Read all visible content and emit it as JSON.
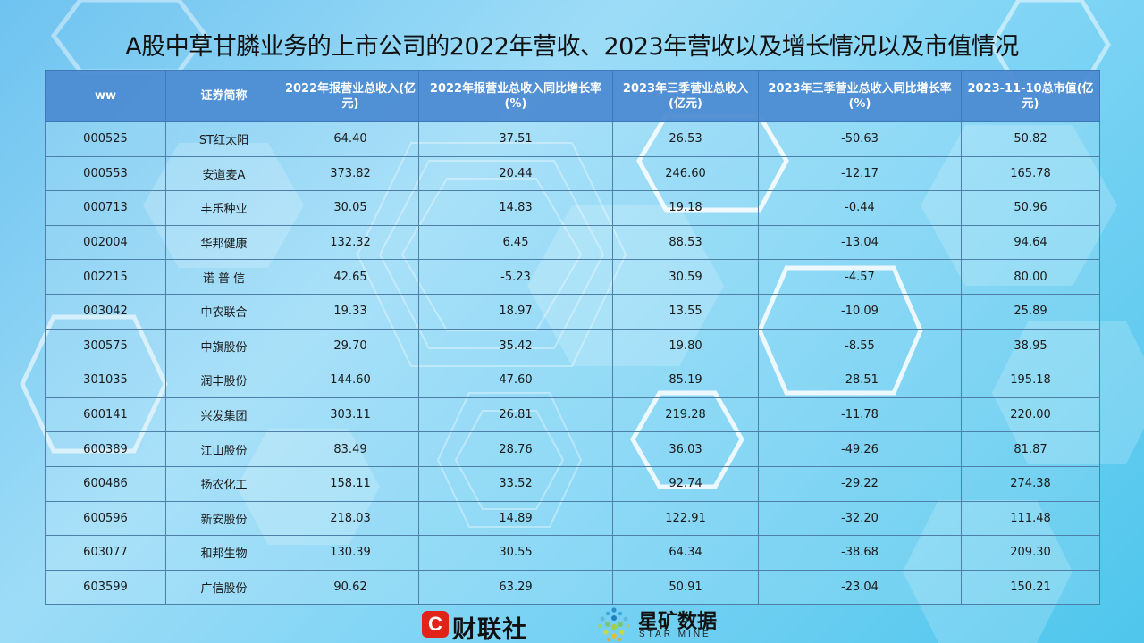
{
  "title": "A股中草甘膦业务的上市公司的2022年营收、2023年营收以及增长情况以及市值情况",
  "table": {
    "headers": [
      "ww",
      "证券简称",
      "2022年报营业总收入(亿元)",
      "2022年报营业总收入同比增长率(%)",
      "2023年三季营业总收入(亿元)",
      "2023年三季营业总收入同比增长率(%)",
      "2023-11-10总市值(亿元)"
    ],
    "rows": [
      [
        "000525",
        "ST红太阳",
        "64.40",
        "37.51",
        "26.53",
        "-50.63",
        "50.82"
      ],
      [
        "000553",
        "安道麦A",
        "373.82",
        "20.44",
        "246.60",
        "-12.17",
        "165.78"
      ],
      [
        "000713",
        "丰乐种业",
        "30.05",
        "14.83",
        "19.18",
        "-0.44",
        "50.96"
      ],
      [
        "002004",
        "华邦健康",
        "132.32",
        "6.45",
        "88.53",
        "-13.04",
        "94.64"
      ],
      [
        "002215",
        "诺 普 信",
        "42.65",
        "-5.23",
        "30.59",
        "-4.57",
        "80.00"
      ],
      [
        "003042",
        "中农联合",
        "19.33",
        "18.97",
        "13.55",
        "-10.09",
        "25.89"
      ],
      [
        "300575",
        "中旗股份",
        "29.70",
        "35.42",
        "19.80",
        "-8.55",
        "38.95"
      ],
      [
        "301035",
        "润丰股份",
        "144.60",
        "47.60",
        "85.19",
        "-28.51",
        "195.18"
      ],
      [
        "600141",
        "兴发集团",
        "303.11",
        "26.81",
        "219.28",
        "-11.78",
        "220.00"
      ],
      [
        "600389",
        "江山股份",
        "83.49",
        "28.76",
        "36.03",
        "-49.26",
        "81.87"
      ],
      [
        "600486",
        "扬农化工",
        "158.11",
        "33.52",
        "92.74",
        "-29.22",
        "274.38"
      ],
      [
        "600596",
        "新安股份",
        "218.03",
        "14.89",
        "122.91",
        "-32.20",
        "111.48"
      ],
      [
        "603077",
        "和邦生物",
        "130.39",
        "30.55",
        "64.34",
        "-38.68",
        "209.30"
      ],
      [
        "603599",
        "广信股份",
        "90.62",
        "63.29",
        "50.91",
        "-23.04",
        "150.21"
      ]
    ]
  },
  "footer": {
    "logo1_badge": "C",
    "logo1_text": "财联社",
    "logo2_text_cn": "星矿数据",
    "logo2_text_en": "STAR MINE"
  },
  "colors": {
    "header_bg": "#4d8cd2",
    "accent_red": "#e2231a"
  }
}
